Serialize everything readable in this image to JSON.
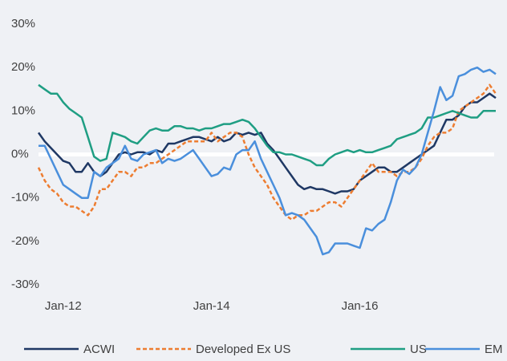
{
  "chart_data": {
    "type": "line",
    "categories": [
      null,
      null,
      null,
      null,
      "Jan-12",
      null,
      null,
      null,
      null,
      null,
      null,
      null,
      null,
      null,
      null,
      null,
      null,
      null,
      null,
      null,
      null,
      null,
      null,
      null,
      null,
      null,
      null,
      null,
      "Jan-14",
      null,
      null,
      null,
      null,
      null,
      null,
      null,
      null,
      null,
      null,
      null,
      null,
      null,
      null,
      null,
      null,
      null,
      null,
      null,
      null,
      null,
      null,
      null,
      "Jan-16",
      null,
      null,
      null,
      null,
      null,
      null,
      null,
      null,
      null,
      null,
      null,
      null,
      null,
      null,
      null,
      null,
      null,
      null,
      null,
      null,
      null,
      null
    ],
    "series": [
      {
        "name": "ACWI",
        "color": "#1f3864",
        "dash": false,
        "values": [
          5,
          3,
          1.5,
          0,
          -1.5,
          -2,
          -4,
          -4,
          -2,
          -4,
          -5,
          -4,
          -2,
          0,
          0.5,
          0,
          0.5,
          0.5,
          0,
          1,
          0.5,
          2.5,
          2.5,
          3,
          3.5,
          4,
          4,
          3.5,
          3,
          4,
          3,
          3.5,
          5,
          4.5,
          5,
          4.5,
          5,
          2.5,
          1,
          -1,
          -3,
          -5,
          -7,
          -8,
          -7.5,
          -8,
          -8,
          -8.5,
          -9,
          -8.5,
          -8.5,
          -8,
          -6,
          -5,
          -4,
          -3,
          -3,
          -4,
          -4,
          -3,
          -2,
          -1,
          0,
          1,
          2,
          5,
          8,
          8,
          9,
          11,
          12,
          12,
          13,
          14,
          13
        ]
      },
      {
        "name": "Developed Ex US",
        "color": "#ed7d31",
        "dash": true,
        "values": [
          -3,
          -6,
          -8,
          -9,
          -11,
          -12,
          -12,
          -13,
          -14,
          -12,
          -8,
          -8,
          -6,
          -4,
          -4,
          -5,
          -3,
          -3,
          -2,
          -2,
          -1,
          0,
          1,
          2,
          3,
          3,
          3,
          3,
          5,
          3,
          4,
          5,
          5,
          4,
          0,
          -3,
          -5,
          -7,
          -10,
          -12,
          -14,
          -15,
          -14,
          -14,
          -13,
          -13,
          -12,
          -11,
          -11,
          -12,
          -10,
          -8,
          -6,
          -4,
          -2,
          -4,
          -4,
          -4,
          -5,
          -4,
          -4,
          -3,
          -1,
          2,
          4,
          5,
          5,
          6,
          10,
          11,
          12,
          13,
          14,
          16,
          14
        ]
      },
      {
        "name": "US",
        "color": "#1f9e83",
        "dash": false,
        "values": [
          16,
          15,
          14,
          14,
          12,
          10.5,
          9.5,
          8.5,
          4,
          -0.5,
          -1.5,
          -1,
          5,
          4.5,
          4,
          3,
          2.5,
          4,
          5.5,
          6,
          5.5,
          5.5,
          6.5,
          6.5,
          6,
          6,
          5.5,
          6,
          6,
          6.5,
          7,
          7,
          7.5,
          8,
          7.5,
          6,
          4,
          2,
          0.5,
          0.5,
          0,
          0,
          -0.5,
          -1,
          -1.5,
          -2.5,
          -2.5,
          -1,
          0,
          0.5,
          1,
          0.5,
          1,
          0.5,
          0.5,
          1,
          1.5,
          2,
          3.5,
          4,
          4.5,
          5,
          6,
          8.5,
          8.5,
          9,
          9.5,
          10,
          9.5,
          9,
          8.5,
          8.5,
          10,
          10,
          10
        ]
      },
      {
        "name": "EM",
        "color": "#4a8fdc",
        "dash": false,
        "values": [
          2,
          2,
          -1,
          -4,
          -7,
          -8,
          -9,
          -10,
          -10,
          -4,
          -5,
          -3,
          -2,
          -1,
          2,
          -1,
          -1.5,
          0,
          0.5,
          1,
          -2,
          -1,
          -1.5,
          -1,
          0,
          1,
          -1,
          -3,
          -5,
          -4.5,
          -3,
          -3.5,
          0,
          1,
          1,
          3,
          -1,
          -4,
          -7,
          -10,
          -14,
          -13.5,
          -14,
          -15,
          -17,
          -19,
          -23,
          -22.5,
          -20.5,
          -20.5,
          -20.5,
          -21,
          -21.5,
          -17,
          -17.5,
          -16,
          -15,
          -11,
          -6,
          -3.5,
          -4.5,
          -3,
          0,
          5,
          10,
          15.5,
          12.5,
          13.5,
          18,
          18.5,
          19.5,
          20,
          19,
          19.5,
          18.5
        ]
      }
    ],
    "ylim": [
      -30,
      30
    ],
    "yticks": [
      {
        "value": -30,
        "label": "-30%"
      },
      {
        "value": -20,
        "label": "-20%"
      },
      {
        "value": -10,
        "label": "-10%"
      },
      {
        "value": 0,
        "label": "0%"
      },
      {
        "value": 10,
        "label": "10%"
      },
      {
        "value": 20,
        "label": "20%"
      },
      {
        "value": 30,
        "label": "30%"
      }
    ],
    "zero_line": true,
    "legend": "bottom"
  }
}
